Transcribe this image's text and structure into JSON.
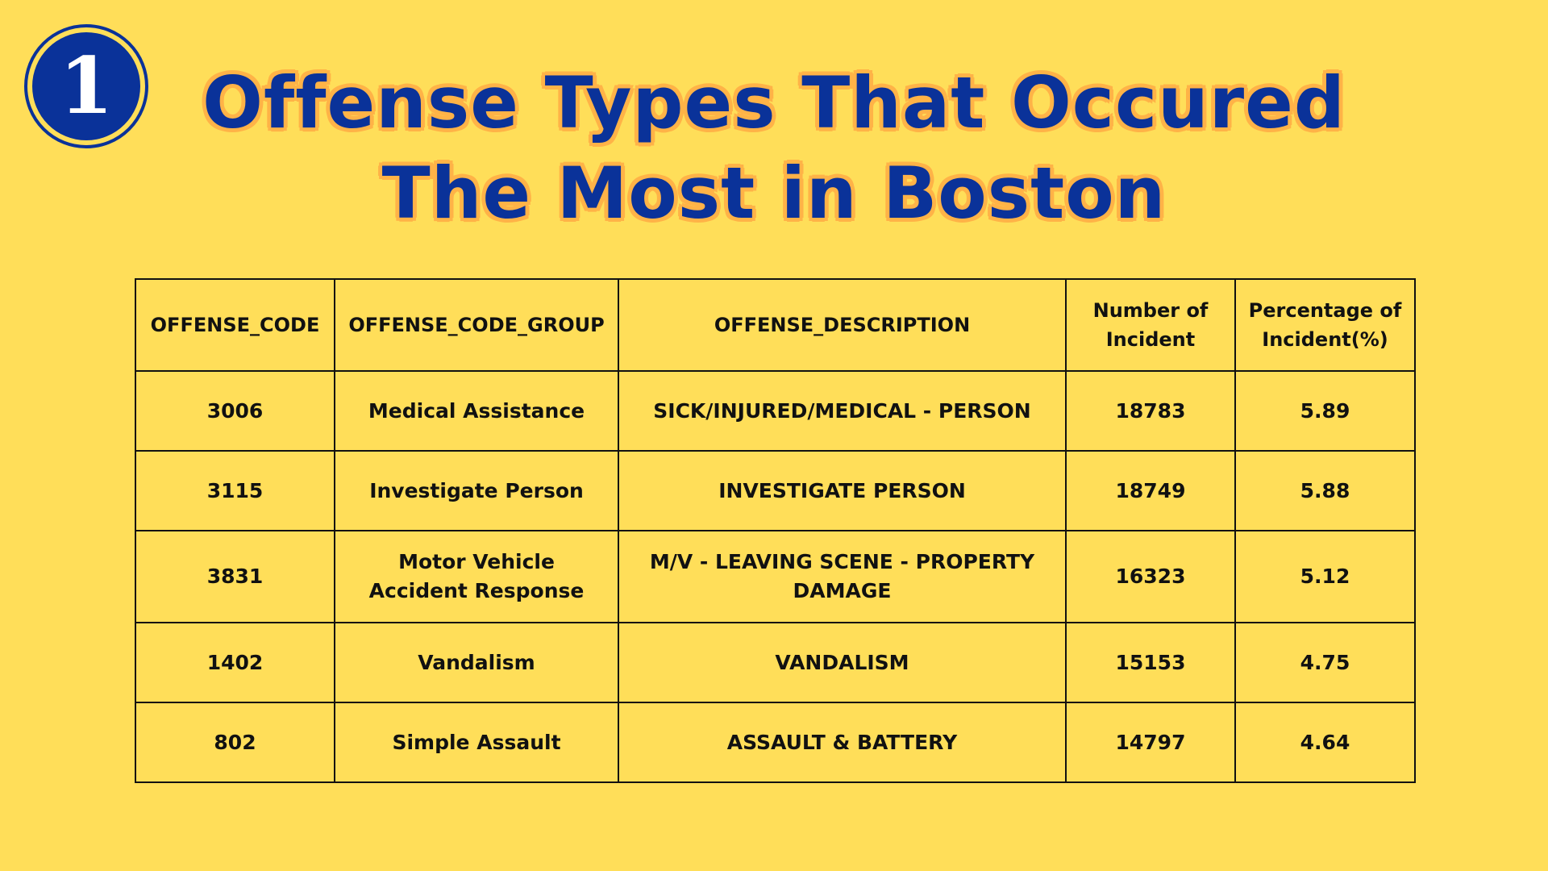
{
  "badge": {
    "number": "1"
  },
  "title": {
    "line1": "Offense Types That Occured",
    "line2": "The Most in Boston"
  },
  "table": {
    "headers": [
      "OFFENSE_CODE",
      "OFFENSE_CODE_GROUP",
      "OFFENSE_DESCRIPTION",
      "Number of Incident",
      "Percentage of Incident(%)"
    ],
    "rows": [
      [
        "3006",
        "Medical Assistance",
        "SICK/INJURED/MEDICAL - PERSON",
        "18783",
        "5.89"
      ],
      [
        "3115",
        "Investigate Person",
        "INVESTIGATE PERSON",
        "18749",
        "5.88"
      ],
      [
        "3831",
        "Motor Vehicle Accident Response",
        "M/V - LEAVING SCENE - PROPERTY DAMAGE",
        "16323",
        "5.12"
      ],
      [
        "1402",
        "Vandalism",
        "VANDALISM",
        "15153",
        "4.75"
      ],
      [
        "802",
        "Simple Assault",
        "ASSAULT & BATTERY",
        "14797",
        "4.64"
      ]
    ]
  },
  "colors": {
    "background": "#FFDE59",
    "title_text": "#0A3299",
    "title_outline": "#FFB347",
    "table_text": "#111111"
  }
}
